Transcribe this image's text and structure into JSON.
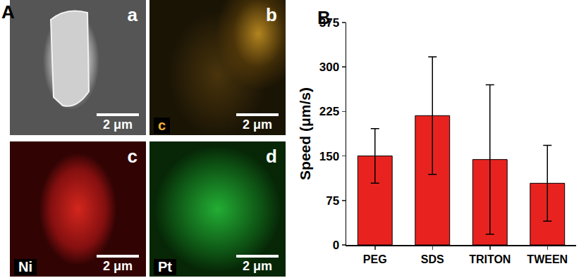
{
  "figure": {
    "panel_labels": [
      "A",
      "B"
    ]
  },
  "panels": [
    {
      "letter": "a",
      "scale_bar": "2 μm"
    },
    {
      "letter": "b",
      "element": "c",
      "scale_bar": "2 μm"
    },
    {
      "letter": "c",
      "element": "Ni",
      "scale_bar": "2 μm"
    },
    {
      "letter": "d",
      "element": "Pt",
      "scale_bar": "2 μm"
    }
  ],
  "chart_data": {
    "type": "bar",
    "y_label": "Speed (μm/s)",
    "categories": [
      "PEG",
      "SDS",
      "TRITON",
      "TWEEN"
    ],
    "values": [
      150,
      218,
      144,
      104
    ],
    "errors": [
      46,
      99,
      126,
      64
    ],
    "color": "#e8231f",
    "ylim": [
      0,
      375
    ],
    "yticks": [
      0,
      75,
      150,
      225,
      300,
      375
    ],
    "grid": false
  }
}
